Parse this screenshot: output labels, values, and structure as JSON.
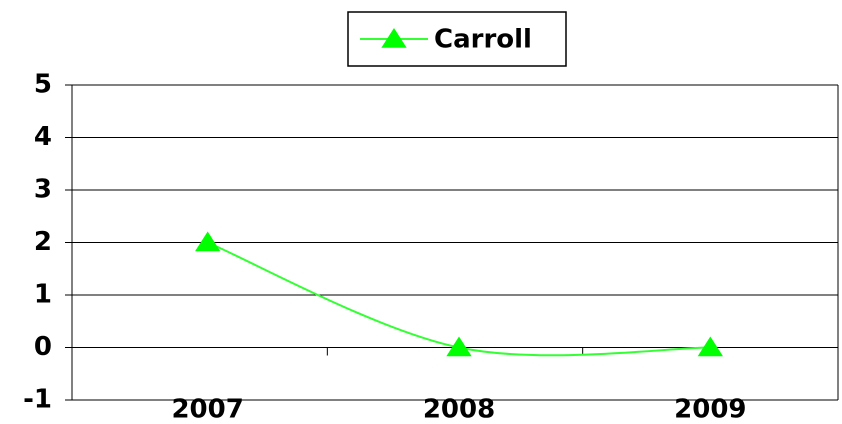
{
  "chart_data": {
    "type": "line",
    "categories": [
      "2007",
      "2008",
      "2009"
    ],
    "series": [
      {
        "name": "Carroll",
        "color": "#33ff33",
        "marker_color": "#00ff00",
        "values": [
          2,
          0,
          0
        ]
      }
    ],
    "ylim": [
      -1,
      5
    ],
    "yticks": [
      -1,
      0,
      1,
      2,
      3,
      4,
      5
    ],
    "grid": true,
    "smooth": true,
    "legend": "top"
  }
}
